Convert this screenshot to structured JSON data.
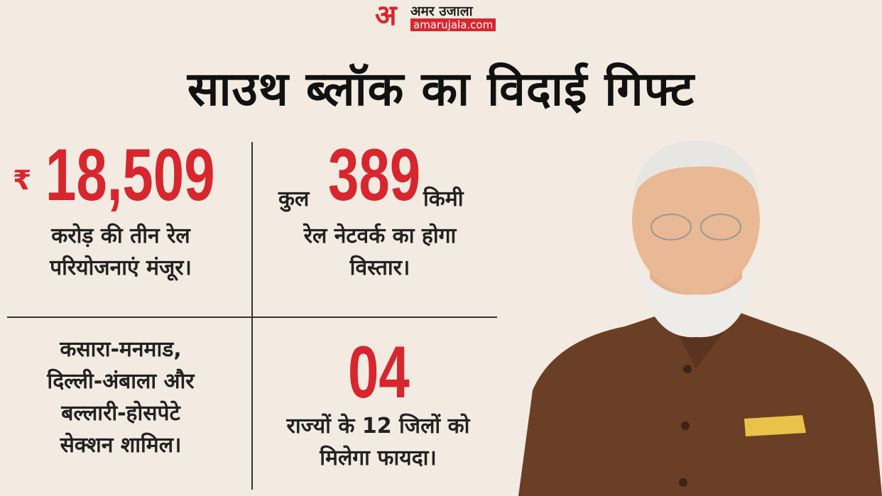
{
  "logo": {
    "mark": "अ",
    "name": "अमर उजाला",
    "site": "amarujala.com"
  },
  "title": "साउथ ब्लॉक का विदाई गिफ्ट",
  "cells": [
    {
      "prefix": "₹",
      "number": "18,509",
      "lines": [
        "करोड़ की तीन रेल",
        "परियोजनाएं मंजूर।"
      ]
    },
    {
      "prefix": "कुल",
      "number": "389",
      "suffix": "किमी",
      "lines": [
        "रेल नेटवर्क का होगा",
        "विस्तार।"
      ]
    },
    {
      "lines": [
        "कसारा-मनमाड,",
        "दिल्ली-अंबाला और",
        "बल्लारी-होसपेटे",
        "सेक्शन शामिल।"
      ]
    },
    {
      "number": "04",
      "lines": [
        "राज्यों के 12 जिलों को",
        "मिलेगा फायदा।"
      ]
    }
  ]
}
